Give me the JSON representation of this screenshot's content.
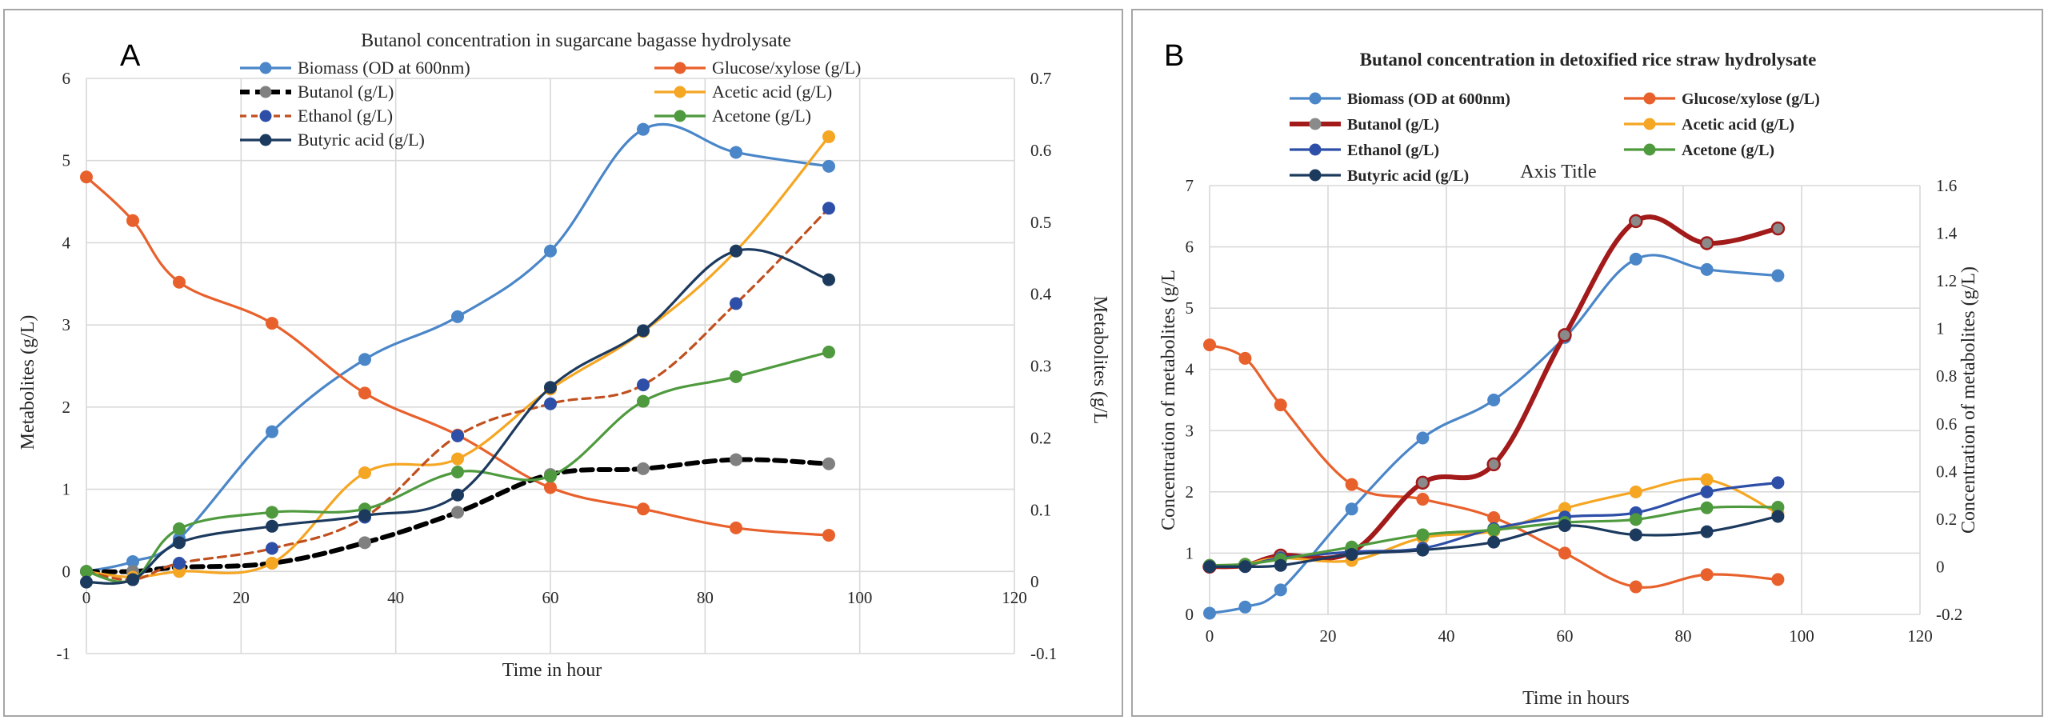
{
  "chart_data": [
    {
      "panel_label": "A",
      "type": "line",
      "title": "Butanol concentration in sugarcane bagasse hydrolysate",
      "xlabel": "Time in hour",
      "ylabel": "Metabolites (g/L)",
      "y2label": "Metabolites (g/L",
      "xlim": [
        0,
        120
      ],
      "xticks": [
        "0",
        "20",
        "40",
        "60",
        "80",
        "100",
        "120"
      ],
      "ylim": [
        -1,
        6
      ],
      "yticks": [
        "-1",
        "0",
        "1",
        "2",
        "3",
        "4",
        "5",
        "6"
      ],
      "y2lim": [
        -0.1,
        0.7
      ],
      "y2ticks": [
        "-0.1",
        "0",
        "0.1",
        "0.2",
        "0.3",
        "0.4",
        "0.5",
        "0.6",
        "0.7"
      ],
      "grid": true,
      "legend_position": "top",
      "series": [
        {
          "name": "Biomass (OD at 600nm)",
          "color": "#4a86c8",
          "dash": false,
          "axis": "left",
          "x": [
            0,
            6,
            12,
            24,
            36,
            48,
            60,
            72,
            84,
            96
          ],
          "values": [
            0.0,
            0.12,
            0.4,
            1.7,
            2.58,
            3.1,
            3.9,
            5.38,
            5.1,
            4.93
          ]
        },
        {
          "name": "Glucose/xylose (g/L)",
          "color": "#e8612c",
          "dash": false,
          "axis": "left",
          "x": [
            0,
            6,
            12,
            24,
            36,
            48,
            60,
            72,
            84,
            96
          ],
          "values": [
            4.8,
            4.27,
            3.52,
            3.02,
            2.17,
            1.66,
            1.02,
            0.76,
            0.53,
            0.44
          ]
        },
        {
          "name": "Butanol (g/L)",
          "color": "#000000",
          "marker_color": "#808080",
          "dash": "dashed-bold",
          "axis": "left",
          "x": [
            0,
            6,
            12,
            24,
            36,
            48,
            60,
            72,
            84,
            96
          ],
          "values": [
            0.0,
            0.0,
            0.05,
            0.1,
            0.35,
            0.72,
            1.18,
            1.25,
            1.36,
            1.31
          ]
        },
        {
          "name": "Acetic acid (g/L)",
          "color": "#f5a623",
          "dash": false,
          "axis": "left",
          "x": [
            0,
            6,
            12,
            24,
            36,
            48,
            60,
            72,
            84,
            96
          ],
          "values": [
            0.0,
            -0.07,
            0.0,
            0.1,
            1.2,
            1.37,
            2.22,
            2.92,
            3.9,
            5.29
          ]
        },
        {
          "name": "Ethanol (g/L)",
          "color": "#c0501f",
          "marker_color": "#2e4fa8",
          "dash": "dashed",
          "axis": "left",
          "x": [
            0,
            6,
            12,
            24,
            36,
            48,
            60,
            72,
            84,
            96
          ],
          "values": [
            0.0,
            -0.1,
            0.1,
            0.28,
            0.66,
            1.65,
            2.04,
            2.27,
            3.26,
            4.42
          ]
        },
        {
          "name": "Acetone (g/L)",
          "color": "#4f9a3e",
          "dash": false,
          "axis": "left",
          "x": [
            0,
            6,
            12,
            24,
            36,
            48,
            60,
            72,
            84,
            96
          ],
          "values": [
            0.0,
            -0.1,
            0.52,
            0.72,
            0.76,
            1.21,
            1.16,
            2.07,
            2.37,
            2.67
          ]
        },
        {
          "name": "Butyric acid (g/L)",
          "color": "#1c3a5e",
          "dash": false,
          "axis": "left",
          "x": [
            0,
            6,
            12,
            24,
            36,
            48,
            60,
            72,
            84,
            96
          ],
          "values": [
            -0.13,
            -0.1,
            0.35,
            0.55,
            0.68,
            0.93,
            2.24,
            2.93,
            3.9,
            3.55
          ]
        }
      ]
    },
    {
      "panel_label": "B",
      "type": "line",
      "title": "Butanol concentration in detoxified rice straw hydrolysate",
      "secondary_title": "Axis Title",
      "xlabel": "Time in hours",
      "ylabel": "Concentration of metabolites  (g/L",
      "y2label": "Concentration of metabolites  (g/L)",
      "xlim": [
        0,
        120
      ],
      "xticks": [
        "0",
        "20",
        "40",
        "60",
        "80",
        "100",
        "120"
      ],
      "ylim": [
        0,
        7
      ],
      "yticks": [
        "0",
        "1",
        "2",
        "3",
        "4",
        "5",
        "6",
        "7"
      ],
      "y2lim": [
        -0.2,
        1.6
      ],
      "y2ticks": [
        "-0.2",
        "0",
        "0.2",
        "0.4",
        "0.6",
        "0.8",
        "1",
        "1.2",
        "1.4",
        "1.6"
      ],
      "grid": true,
      "legend_position": "top",
      "series": [
        {
          "name": "Biomass (OD at 600nm)",
          "color": "#4a86c8",
          "dash": false,
          "axis": "left",
          "x": [
            0,
            6,
            12,
            24,
            36,
            48,
            60,
            72,
            84,
            96
          ],
          "values": [
            0.02,
            0.12,
            0.4,
            1.72,
            2.88,
            3.5,
            4.52,
            5.8,
            5.63,
            5.53
          ]
        },
        {
          "name": "Glucose/xylose (g/L)",
          "color": "#e8612c",
          "dash": false,
          "axis": "left",
          "x": [
            0,
            6,
            12,
            24,
            36,
            48,
            60,
            72,
            84,
            96
          ],
          "values": [
            4.4,
            4.18,
            3.42,
            2.12,
            1.88,
            1.58,
            1.0,
            0.45,
            0.65,
            0.57
          ]
        },
        {
          "name": "Butanol (g/L)",
          "color": "#a31a1a",
          "marker_color": "#8a8a8a",
          "dash": "bold",
          "axis": "left",
          "x": [
            0,
            6,
            12,
            24,
            36,
            48,
            60,
            72,
            84,
            96
          ],
          "values": [
            0.78,
            0.8,
            0.96,
            1.02,
            2.15,
            2.45,
            4.56,
            6.42,
            6.06,
            6.3
          ]
        },
        {
          "name": "Acetic acid (g/L)",
          "color": "#f5a623",
          "dash": false,
          "axis": "left",
          "x": [
            0,
            6,
            12,
            24,
            36,
            48,
            60,
            72,
            84,
            96
          ],
          "values": [
            0.8,
            0.82,
            0.92,
            0.88,
            1.25,
            1.36,
            1.73,
            2.0,
            2.2,
            1.65
          ]
        },
        {
          "name": "Ethanol (g/L)",
          "color": "#2e4fa8",
          "dash": false,
          "axis": "left",
          "x": [
            0,
            6,
            12,
            24,
            36,
            48,
            60,
            72,
            84,
            96
          ],
          "values": [
            0.8,
            0.8,
            0.92,
            1.02,
            1.08,
            1.4,
            1.59,
            1.66,
            2.0,
            2.15
          ]
        },
        {
          "name": "Acetone (g/L)",
          "color": "#4f9a3e",
          "dash": false,
          "axis": "left",
          "x": [
            0,
            6,
            12,
            24,
            36,
            48,
            60,
            72,
            84,
            96
          ],
          "values": [
            0.8,
            0.82,
            0.9,
            1.1,
            1.3,
            1.38,
            1.5,
            1.55,
            1.74,
            1.75
          ]
        },
        {
          "name": "Butyric acid (g/L)",
          "color": "#1c3a5e",
          "dash": false,
          "axis": "left",
          "x": [
            0,
            6,
            12,
            24,
            36,
            48,
            60,
            72,
            84,
            96
          ],
          "values": [
            0.78,
            0.78,
            0.8,
            0.98,
            1.05,
            1.18,
            1.45,
            1.3,
            1.35,
            1.6
          ]
        }
      ]
    }
  ]
}
